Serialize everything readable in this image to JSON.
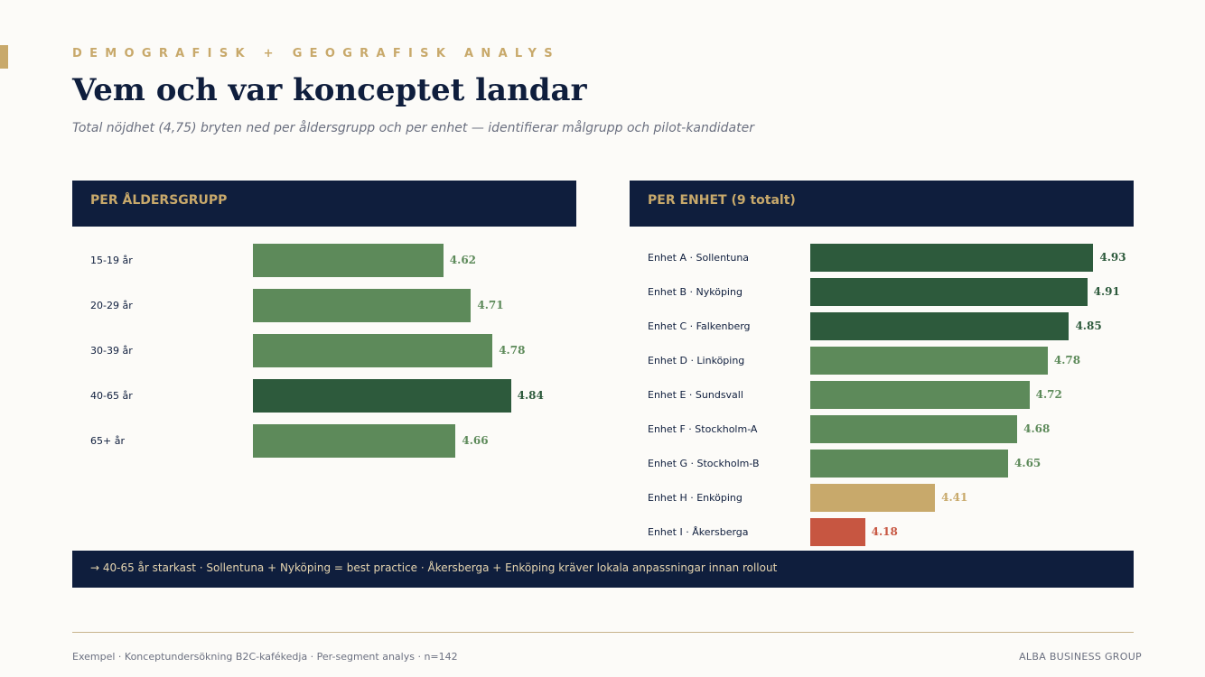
{
  "header": {
    "eyebrow": "DEMOGRAFISK + GEOGRAFISK ANALYS",
    "title": "Vem och var konceptet landar",
    "subtitle": "Total nöjdhet (4,75) bryten ned per åldersgrupp och per enhet — identifierar målgrupp och pilot-kandidater"
  },
  "colors": {
    "navy": "#0f1e3d",
    "gold": "#c8a96b",
    "green": "#5d8a5a",
    "dark_green": "#2d5a3c",
    "red": "#c75641",
    "background": "#fcfbf8"
  },
  "chart_data": [
    {
      "type": "bar",
      "orientation": "horizontal",
      "title": "PER ÅLDERSGRUPP",
      "categories": [
        "15-19 år",
        "20-29 år",
        "30-39 år",
        "40-65 år",
        "65+ år"
      ],
      "values": [
        4.62,
        4.71,
        4.78,
        4.84,
        4.66
      ],
      "value_labels": [
        "4.62",
        "4.71",
        "4.78",
        "4.84",
        "4.66"
      ],
      "colors": [
        "#5d8a5a",
        "#5d8a5a",
        "#5d8a5a",
        "#2d5a3c",
        "#5d8a5a"
      ],
      "xlim": [
        4.0,
        5.0
      ]
    },
    {
      "type": "bar",
      "orientation": "horizontal",
      "title": "PER ENHET (9 totalt)",
      "categories": [
        "Enhet A · Sollentuna",
        "Enhet B · Nyköping",
        "Enhet C · Falkenberg",
        "Enhet D · Linköping",
        "Enhet E · Sundsvall",
        "Enhet F · Stockholm-A",
        "Enhet G · Stockholm-B",
        "Enhet H · Enköping",
        "Enhet I · Åkersberga"
      ],
      "values": [
        4.93,
        4.91,
        4.85,
        4.78,
        4.72,
        4.68,
        4.65,
        4.41,
        4.18
      ],
      "value_labels": [
        "4.93",
        "4.91",
        "4.85",
        "4.78",
        "4.72",
        "4.68",
        "4.65",
        "4.41",
        "4.18"
      ],
      "colors": [
        "#2d5a3c",
        "#2d5a3c",
        "#2d5a3c",
        "#5d8a5a",
        "#5d8a5a",
        "#5d8a5a",
        "#5d8a5a",
        "#c8a96b",
        "#c75641"
      ],
      "xlim": [
        4.0,
        5.0
      ]
    }
  ],
  "insight": "→ 40-65 år starkast · Sollentuna + Nyköping = best practice · Åkersberga + Enköping kräver lokala anpassningar innan rollout",
  "footer": {
    "left": "Exempel · Konceptundersökning B2C-kafékedja · Per-segment analys · n=142",
    "right": "ALBA BUSINESS GROUP"
  }
}
